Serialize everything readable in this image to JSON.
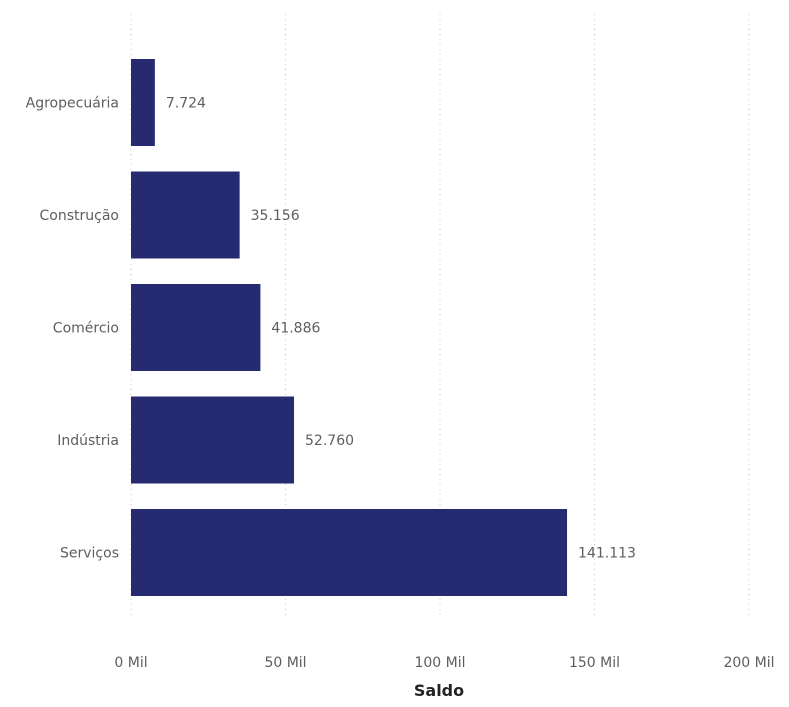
{
  "chart_data": {
    "type": "bar",
    "orientation": "horizontal",
    "categories": [
      "Agropecuária",
      "Construção",
      "Comércio",
      "Indústria",
      "Serviços"
    ],
    "values": [
      7724,
      35156,
      41886,
      52760,
      141113
    ],
    "value_labels": [
      "7.724",
      "35.156",
      "41.886",
      "52.760",
      "141.113"
    ],
    "xlabel": "Saldo",
    "ylabel": "",
    "xlim": [
      0,
      200000
    ],
    "xticks": [
      0,
      50000,
      100000,
      150000,
      200000
    ],
    "xtick_labels": [
      "0 Mil",
      "50 Mil",
      "100 Mil",
      "150 Mil",
      "200 Mil"
    ],
    "grid": true,
    "bar_color": "#252a71"
  }
}
